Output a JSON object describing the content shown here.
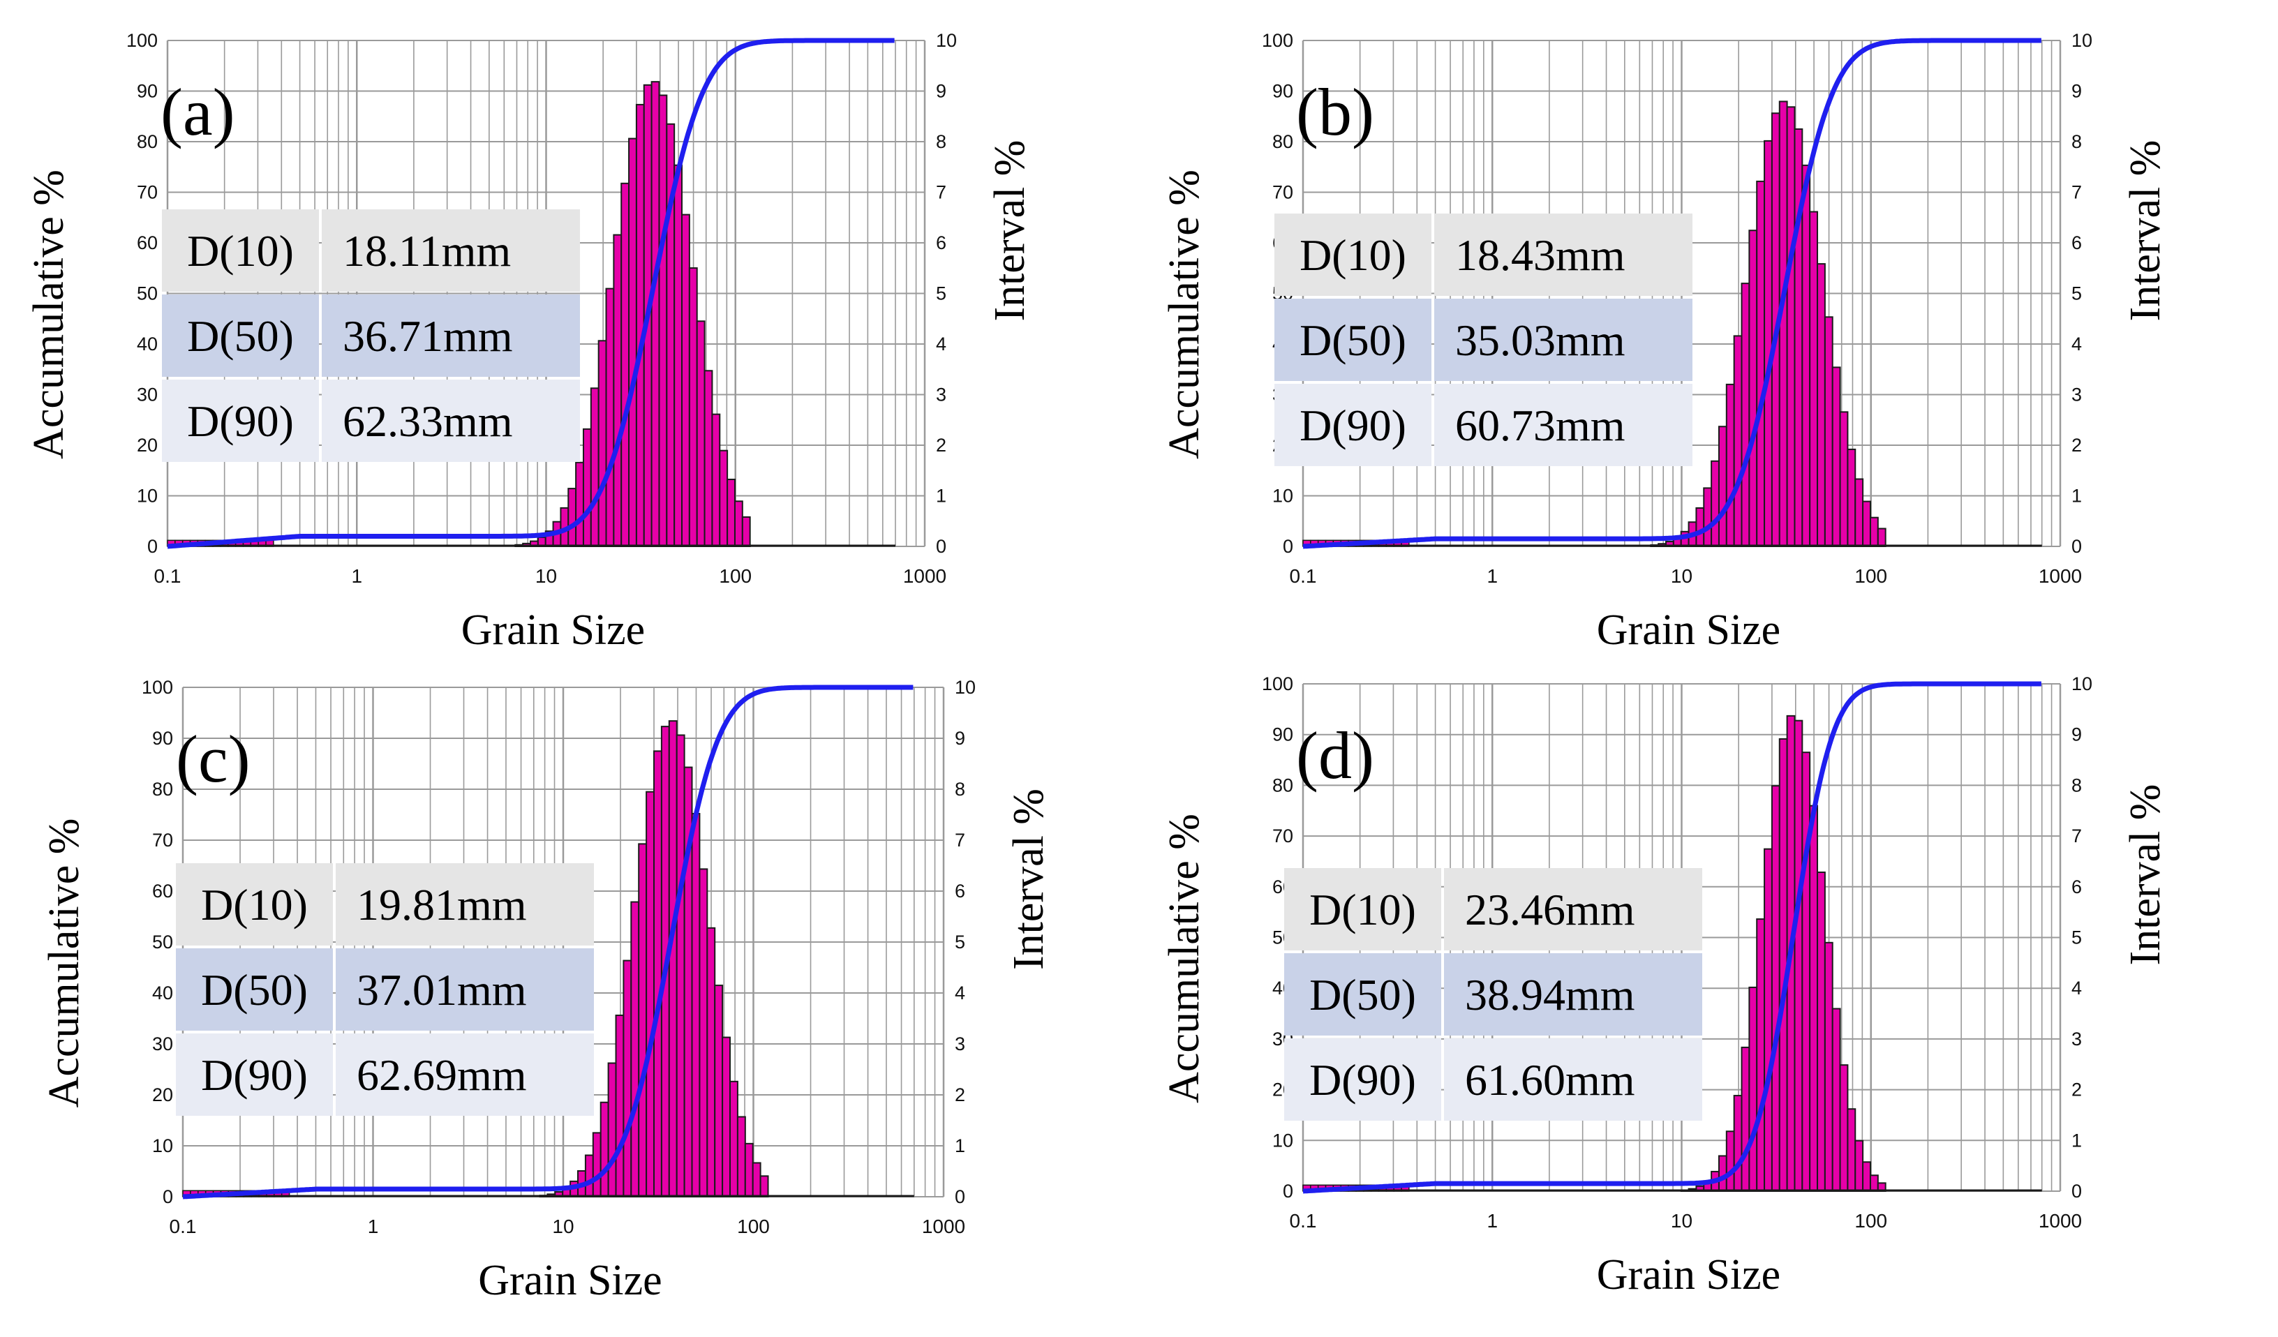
{
  "chart_data": [
    {
      "panel_label": "(a)",
      "type": "bar",
      "xlabel": "Grain Size",
      "ylabel_left": "Accumulative %",
      "ylabel_right": "Interval %",
      "x_scale": "log",
      "xlim": [
        0.1,
        1000
      ],
      "ylim_left": [
        0,
        100
      ],
      "ylim_right": [
        0,
        10
      ],
      "x_ticks": [
        "0.1",
        "1",
        "10",
        "100",
        "1000"
      ],
      "y_left_ticks": [
        "0",
        "10",
        "20",
        "30",
        "40",
        "50",
        "60",
        "70",
        "80",
        "90",
        "100"
      ],
      "y_right_ticks": [
        "0",
        "1",
        "2",
        "3",
        "4",
        "5",
        "6",
        "7",
        "8",
        "9",
        "10"
      ],
      "stats": [
        {
          "label": "D(10)",
          "value": "18.11mm"
        },
        {
          "label": "D(50)",
          "value": "36.71mm"
        },
        {
          "label": "D(90)",
          "value": "62.33mm"
        }
      ],
      "d10": 18.11,
      "d50": 36.71,
      "d90": 62.33,
      "interval_peak": 9.2,
      "cumulative_plateau": 2.0,
      "cumulative_end_x": 700,
      "bar_color": "#E600A8",
      "curve_color": "#1F1FEF"
    },
    {
      "panel_label": "(b)",
      "type": "bar",
      "xlabel": "Grain Size",
      "ylabel_left": "Accumulative %",
      "ylabel_right": "Interval %",
      "x_scale": "log",
      "xlim": [
        0.1,
        1000
      ],
      "ylim_left": [
        0,
        100
      ],
      "ylim_right": [
        0,
        10
      ],
      "x_ticks": [
        "0.1",
        "1",
        "10",
        "100",
        "1000"
      ],
      "y_left_ticks": [
        "0",
        "10",
        "20",
        "30",
        "40",
        "50",
        "60",
        "70",
        "80",
        "90",
        "100"
      ],
      "y_right_ticks": [
        "0",
        "1",
        "2",
        "3",
        "4",
        "5",
        "6",
        "7",
        "8",
        "9",
        "10"
      ],
      "stats": [
        {
          "label": "D(10)",
          "value": "18.43mm"
        },
        {
          "label": "D(50)",
          "value": "35.03mm"
        },
        {
          "label": "D(90)",
          "value": "60.73mm"
        }
      ],
      "d10": 18.43,
      "d50": 35.03,
      "d90": 60.73,
      "interval_peak": 8.8,
      "cumulative_plateau": 1.5,
      "cumulative_end_x": 800,
      "bar_color": "#E600A8",
      "curve_color": "#1F1FEF"
    },
    {
      "panel_label": "(c)",
      "type": "bar",
      "xlabel": "Grain Size",
      "ylabel_left": "Accumulative %",
      "ylabel_right": "Interval %",
      "x_scale": "log",
      "xlim": [
        0.1,
        1000
      ],
      "ylim_left": [
        0,
        100
      ],
      "ylim_right": [
        0,
        10
      ],
      "x_ticks": [
        "0.1",
        "1",
        "10",
        "100",
        "1000"
      ],
      "y_left_ticks": [
        "0",
        "10",
        "20",
        "30",
        "40",
        "50",
        "60",
        "70",
        "80",
        "90",
        "100"
      ],
      "y_right_ticks": [
        "0",
        "1",
        "2",
        "3",
        "4",
        "5",
        "6",
        "7",
        "8",
        "9",
        "10"
      ],
      "stats": [
        {
          "label": "D(10)",
          "value": "19.81mm"
        },
        {
          "label": "D(50)",
          "value": "37.01mm"
        },
        {
          "label": "D(90)",
          "value": "62.69mm"
        }
      ],
      "d10": 19.81,
      "d50": 37.01,
      "d90": 62.69,
      "interval_peak": 9.35,
      "cumulative_plateau": 1.5,
      "cumulative_end_x": 700,
      "bar_color": "#E600A8",
      "curve_color": "#1F1FEF"
    },
    {
      "panel_label": "(d)",
      "type": "bar",
      "xlabel": "Grain Size",
      "ylabel_left": "Accumulative %",
      "ylabel_right": "Interval %",
      "x_scale": "log",
      "xlim": [
        0.1,
        1000
      ],
      "ylim_left": [
        0,
        100
      ],
      "ylim_right": [
        0,
        10
      ],
      "x_ticks": [
        "0.1",
        "1",
        "10",
        "100",
        "1000"
      ],
      "y_left_ticks": [
        "0",
        "10",
        "20",
        "30",
        "40",
        "50",
        "60",
        "70",
        "80",
        "90",
        "100"
      ],
      "y_right_ticks": [
        "0",
        "1",
        "2",
        "3",
        "4",
        "5",
        "6",
        "7",
        "8",
        "9",
        "10"
      ],
      "stats": [
        {
          "label": "D(10)",
          "value": "23.46mm"
        },
        {
          "label": "D(50)",
          "value": "38.94mm"
        },
        {
          "label": "D(90)",
          "value": "61.60mm"
        }
      ],
      "d10": 23.46,
      "d50": 38.94,
      "d90": 61.6,
      "interval_peak": 9.4,
      "cumulative_plateau": 1.5,
      "cumulative_end_x": 800,
      "bar_color": "#E600A8",
      "curve_color": "#1F1FEF"
    }
  ]
}
